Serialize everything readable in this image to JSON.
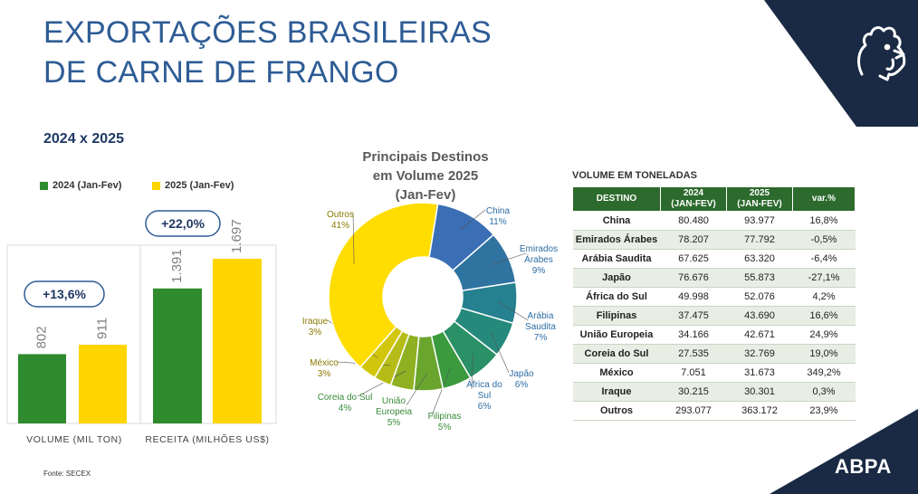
{
  "header": {
    "title_line1": "EXPORTAÇÕES BRASILEIRAS",
    "title_line2": "DE CARNE DE FRANGO",
    "subtitle": "2024 x 2025"
  },
  "colors": {
    "green": "#2e8b2e",
    "yellow": "#ffd500",
    "navy": "#1a2a44",
    "header_green": "#2d6a2d"
  },
  "legend": {
    "y2024": "2024 (Jan-Fev)",
    "y2025": "2025 (Jan-Fev)"
  },
  "footer": {
    "source": "Fonte: SECEX",
    "logo_text": "ABPA"
  },
  "chart_data": [
    {
      "type": "bar",
      "categories": [
        "VOLUME (MIL TON)",
        "RECEITA (MILHÕES US$)"
      ],
      "series": [
        {
          "name": "2024 (Jan-Fev)",
          "values": [
            802,
            1391
          ],
          "labels": [
            "802",
            "1.391"
          ]
        },
        {
          "name": "2025 (Jan-Fev)",
          "values": [
            911,
            1697
          ],
          "labels": [
            "911",
            "1.697"
          ]
        }
      ],
      "annotations": [
        "+13,6%",
        "+22,0%"
      ]
    },
    {
      "type": "pie",
      "title_line1": "Principais Destinos",
      "title_line2": "em Volume 2025",
      "title_line3": "(Jan-Fev)",
      "slices": [
        {
          "label": "China",
          "pct_text": "11%",
          "value": 11,
          "color": "#3a6fb5"
        },
        {
          "label": "Emirados Árabes",
          "pct_text": "9%",
          "value": 9,
          "color": "#2f73a0"
        },
        {
          "label": "Arábia Saudita",
          "pct_text": "7%",
          "value": 7,
          "color": "#25808f"
        },
        {
          "label": "Japão",
          "pct_text": "6%",
          "value": 6,
          "color": "#258a7c"
        },
        {
          "label": "África do Sul",
          "pct_text": "6%",
          "value": 6,
          "color": "#2a9066"
        },
        {
          "label": "Filipinas",
          "pct_text": "5%",
          "value": 5,
          "color": "#3b9a3e"
        },
        {
          "label": "União Europeia",
          "pct_text": "5%",
          "value": 5,
          "color": "#6aa52d"
        },
        {
          "label": "Coreia do Sul",
          "pct_text": "4%",
          "value": 4,
          "color": "#8fb021"
        },
        {
          "label": "México",
          "pct_text": "3%",
          "value": 3,
          "color": "#b5bc17"
        },
        {
          "label": "Iraque",
          "pct_text": "3%",
          "value": 3,
          "color": "#d2c60d"
        },
        {
          "label": "Outros",
          "pct_text": "41%",
          "value": 41,
          "color": "#ffdd00"
        }
      ]
    },
    {
      "type": "table",
      "caption": "VOLUME EM TONELADAS",
      "columns": [
        "DESTINO",
        "2024 (JAN-FEV)",
        "2025 (JAN-FEV)",
        "var.%"
      ],
      "col_line1": [
        "DESTINO",
        "2024",
        "2025",
        "var.%"
      ],
      "col_line2": [
        "",
        "(JAN-FEV)",
        "(JAN-FEV)",
        ""
      ],
      "rows": [
        [
          "China",
          "80.480",
          "93.977",
          "16,8%"
        ],
        [
          "Emirados Árabes",
          "78.207",
          "77.792",
          "-0,5%"
        ],
        [
          "Arábia Saudita",
          "67.625",
          "63.320",
          "-6,4%"
        ],
        [
          "Japão",
          "76.676",
          "55.873",
          "-27,1%"
        ],
        [
          "África do Sul",
          "49.998",
          "52.076",
          "4,2%"
        ],
        [
          "Filipinas",
          "37.475",
          "43.690",
          "16,6%"
        ],
        [
          "União Europeia",
          "34.166",
          "42.671",
          "24,9%"
        ],
        [
          "Coreia do Sul",
          "27.535",
          "32.769",
          "19,0%"
        ],
        [
          "México",
          "7.051",
          "31.673",
          "349,2%"
        ],
        [
          "Iraque",
          "30.215",
          "30.301",
          "0,3%"
        ],
        [
          "Outros",
          "293.077",
          "363.172",
          "23,9%"
        ]
      ]
    }
  ]
}
